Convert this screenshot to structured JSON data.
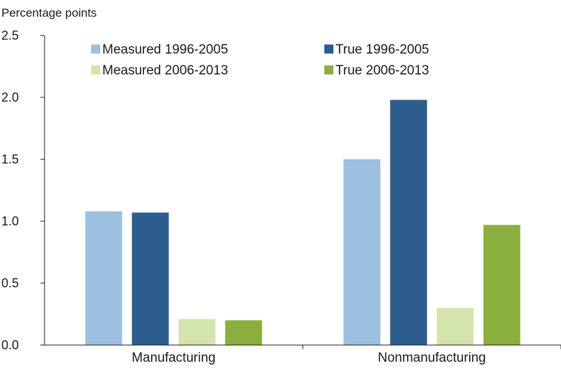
{
  "chart_data": {
    "type": "bar",
    "title": "",
    "ylabel": "Percentage points",
    "xlabel": "",
    "categories": [
      "Manufacturing",
      "Nonmanufacturing"
    ],
    "ylim": [
      0,
      2.5
    ],
    "yticks": [
      "0.0",
      "0.5",
      "1.0",
      "1.5",
      "2.0",
      "2.5"
    ],
    "grid": false,
    "legend_placement": "top",
    "series": [
      {
        "name": "Measured 1996-2005",
        "color": "#9dbfe0",
        "values": [
          1.08,
          1.5
        ]
      },
      {
        "name": "True 1996-2005",
        "color": "#2c5d8d",
        "values": [
          1.07,
          1.98
        ]
      },
      {
        "name": "Measured 2006-2013",
        "color": "#d3e4ad",
        "values": [
          0.21,
          0.3
        ]
      },
      {
        "name": "True 2006-2013",
        "color": "#8baf3f",
        "values": [
          0.2,
          0.97
        ]
      }
    ]
  }
}
